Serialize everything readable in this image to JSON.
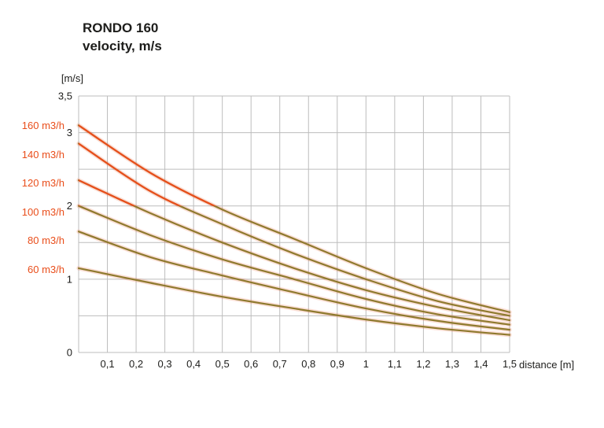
{
  "title": {
    "line1": "RONDO 160",
    "line2": "velocity, m/s"
  },
  "chart_data": {
    "type": "line",
    "title": "RONDO 160 velocity, m/s",
    "y_unit_label": "[m/s]",
    "x_axis_label": "distance [m]",
    "x_range": [
      0,
      1.5
    ],
    "y_range": [
      0,
      3.5
    ],
    "x_grid_step": 0.1,
    "y_grid_step": 0.5,
    "grid": "on",
    "legend_position": "left",
    "x_ticks": {
      "values": [
        0.1,
        0.2,
        0.3,
        0.4,
        0.5,
        0.6,
        0.7,
        0.8,
        0.9,
        1.0,
        1.1,
        1.2,
        1.3,
        1.4,
        1.5
      ],
      "labels": [
        "0,1",
        "0,2",
        "0,3",
        "0,4",
        "0,5",
        "0,6",
        "0,7",
        "0,8",
        "0,9",
        "1",
        "1,1",
        "1,2",
        "1,3",
        "1,4",
        "1,5"
      ]
    },
    "y_ticks": {
      "values": [
        0,
        1,
        2,
        3,
        3.5
      ],
      "labels": [
        "0",
        "1",
        "2",
        "3",
        "3,5"
      ]
    },
    "x": [
      0,
      0.25,
      0.5,
      0.75,
      1.0,
      1.25,
      1.5
    ],
    "series": [
      {
        "name": "160 m3/h",
        "values": [
          3.1,
          2.45,
          1.95,
          1.55,
          1.15,
          0.8,
          0.55
        ]
      },
      {
        "name": "140 m3/h",
        "values": [
          2.85,
          2.2,
          1.75,
          1.35,
          1.0,
          0.7,
          0.5
        ]
      },
      {
        "name": "120 m3/h",
        "values": [
          2.35,
          1.9,
          1.5,
          1.15,
          0.85,
          0.62,
          0.44
        ]
      },
      {
        "name": "100 m3/h",
        "values": [
          2.0,
          1.6,
          1.27,
          1.0,
          0.73,
          0.52,
          0.38
        ]
      },
      {
        "name": "80 m3/h",
        "values": [
          1.65,
          1.3,
          1.05,
          0.82,
          0.6,
          0.43,
          0.31
        ]
      },
      {
        "name": "60 m3/h",
        "values": [
          1.15,
          0.95,
          0.76,
          0.6,
          0.45,
          0.33,
          0.24
        ]
      }
    ],
    "red_threshold": 2.0,
    "colors": {
      "line_low": "#8f7a2e",
      "line_high": "#e94e1b",
      "glow": "rgba(233,78,27,0.18)",
      "grid": "#bdbdbd",
      "text": "#1d1d1b",
      "label": "#e94e1b"
    }
  }
}
